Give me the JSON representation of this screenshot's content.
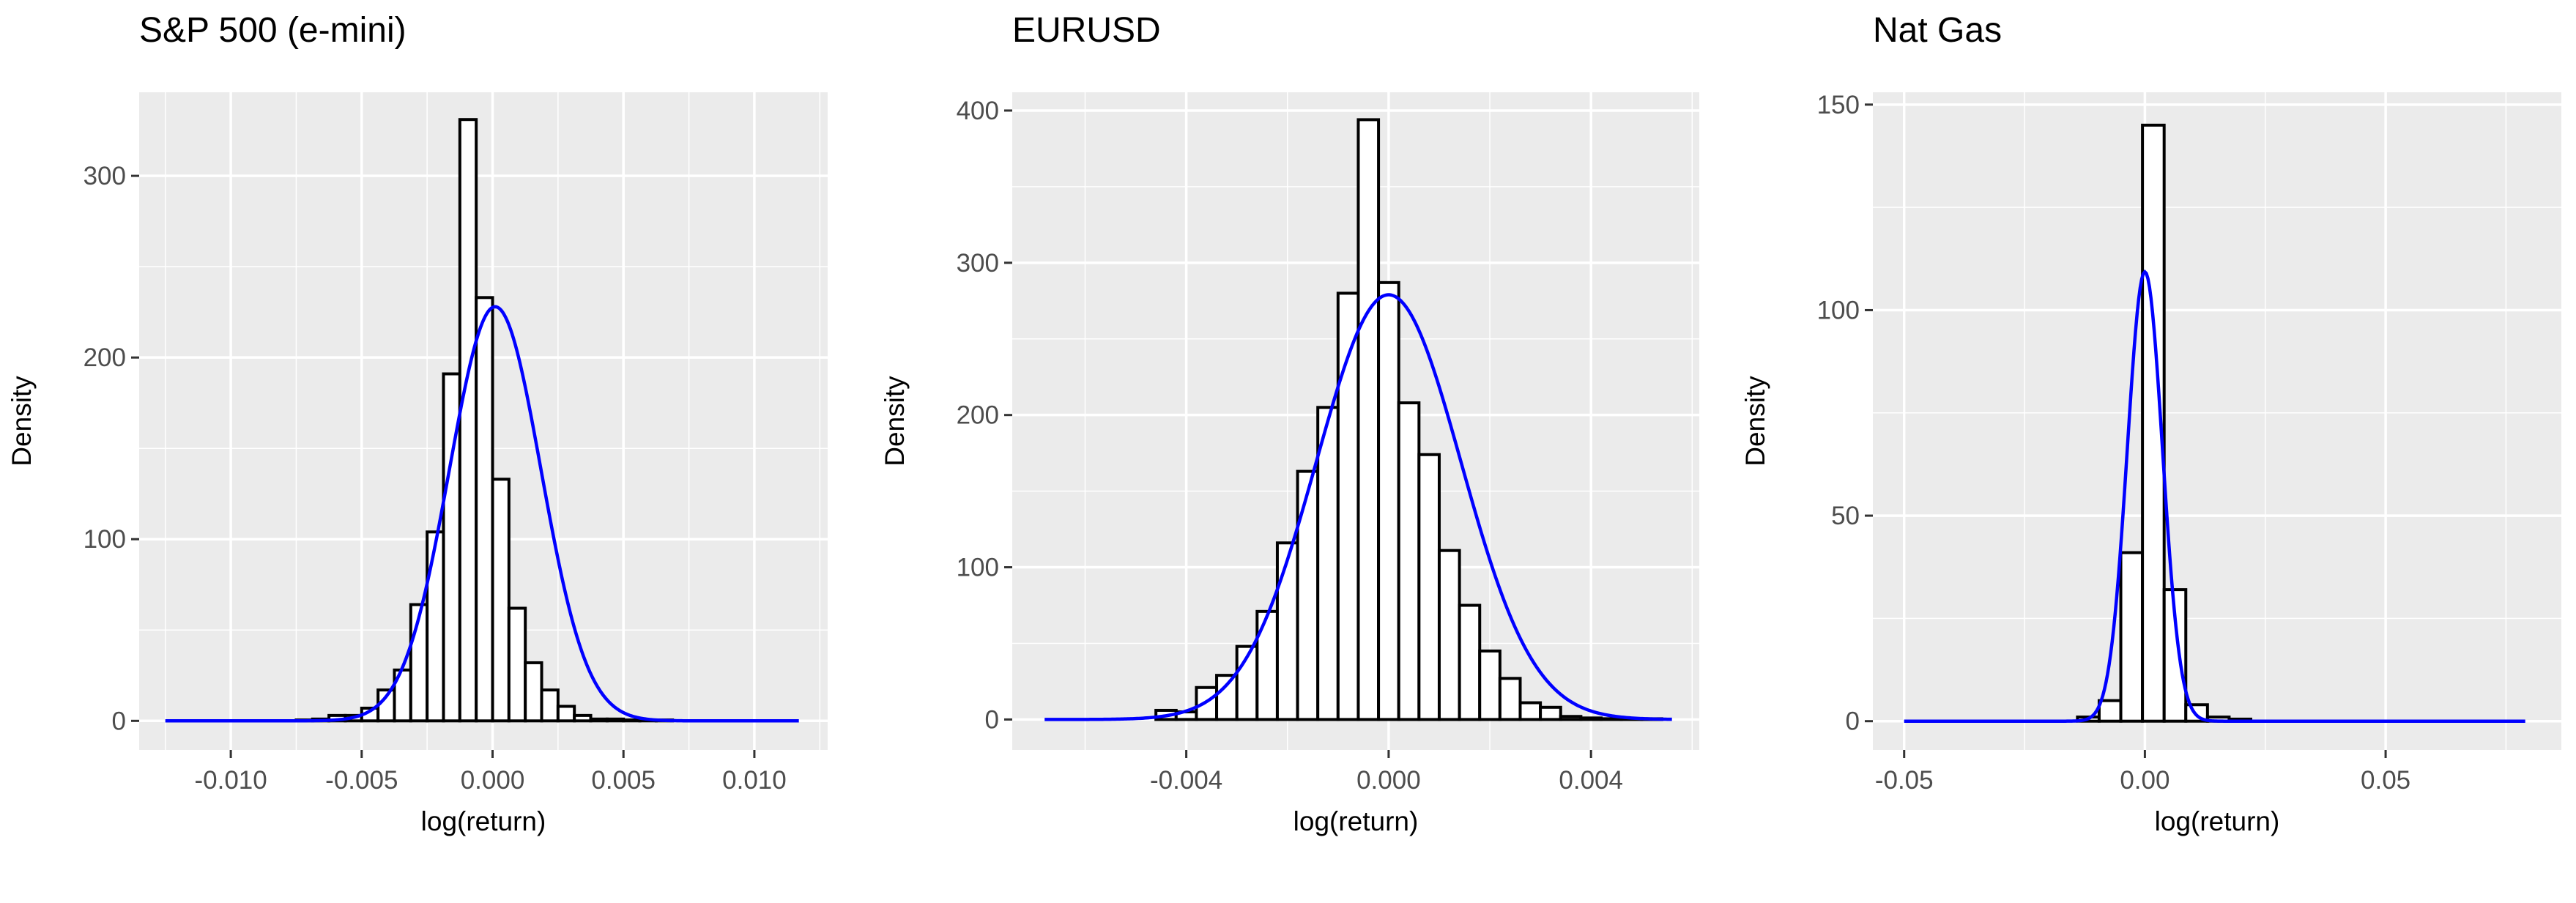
{
  "chart_data": [
    {
      "type": "histogram",
      "title": "S&P 500 (e-mini)",
      "xlabel": "log(return)",
      "ylabel": "Density",
      "xlim": [
        -0.0135,
        0.0128
      ],
      "ylim": [
        -16,
        346
      ],
      "x_ticks": [
        -0.01,
        -0.005,
        0.0,
        0.005,
        0.01
      ],
      "x_tick_labels": [
        "-0.010",
        "-0.005",
        "0.000",
        "0.005",
        "0.010"
      ],
      "y_ticks": [
        0,
        100,
        200,
        300
      ],
      "y_tick_labels": [
        "0",
        "100",
        "200",
        "300"
      ],
      "bin_width": 0.000625,
      "bins": {
        "x": [
          -0.0125,
          -0.011875,
          -0.01125,
          -0.010625,
          -0.01,
          -0.009375,
          -0.00875,
          -0.008125,
          -0.0075,
          -0.006875,
          -0.00625,
          -0.005625,
          -0.005,
          -0.004375,
          -0.00375,
          -0.003125,
          -0.0025,
          -0.001875,
          -0.00125,
          -0.000625,
          0,
          0.000625,
          0.00125,
          0.001875,
          0.0025,
          0.003125,
          0.00375,
          0.004375,
          0.005,
          0.005625,
          0.00625,
          0.006875,
          0.0075,
          0.008125,
          0.00875,
          0.009375,
          0.01,
          0.010625,
          0.01125
        ],
        "density": [
          0,
          0,
          0,
          0,
          0,
          0,
          0,
          0,
          0.5,
          1,
          3,
          3,
          7,
          17,
          28,
          64,
          104,
          191,
          331,
          233,
          133,
          62,
          32,
          17,
          8,
          3,
          1,
          1,
          0.5,
          0.5,
          0.5,
          0,
          0,
          0,
          0,
          0,
          0,
          0,
          0
        ]
      },
      "fitted_curve": {
        "name": "normal fit",
        "color": "#0000ff",
        "mean": 0.0001,
        "sd": 0.00175
      },
      "curve_range": [
        -0.0125,
        0.0117
      ]
    },
    {
      "type": "histogram",
      "title": "EURUSD",
      "xlabel": "log(return)",
      "ylabel": "Density",
      "xlim": [
        -0.00744,
        0.00614
      ],
      "ylim": [
        -20,
        412
      ],
      "x_ticks": [
        -0.004,
        0.0,
        0.004
      ],
      "x_tick_labels": [
        "-0.004",
        "0.000",
        "0.004"
      ],
      "y_ticks": [
        0,
        100,
        200,
        300,
        400
      ],
      "y_tick_labels": [
        "0",
        "100",
        "200",
        "300",
        "400"
      ],
      "bin_width": 0.0004,
      "bins": {
        "x": [
          -0.007,
          -0.0066,
          -0.0062,
          -0.0058,
          -0.0054,
          -0.005,
          -0.0046,
          -0.0042,
          -0.0038,
          -0.0034,
          -0.003,
          -0.0026,
          -0.0022,
          -0.0018,
          -0.0014,
          -0.001,
          -0.0006,
          -0.0002,
          0.0002,
          0.0006,
          0.001,
          0.0014,
          0.0018,
          0.0022,
          0.0026,
          0.003,
          0.0034,
          0.0038,
          0.0042,
          0.0046,
          0.005,
          0.0054
        ],
        "density": [
          0,
          0,
          0,
          0,
          0,
          0,
          6,
          5,
          21,
          29,
          48,
          71,
          116,
          163,
          205,
          280,
          394,
          287,
          208,
          174,
          111,
          75,
          45,
          27,
          11,
          8,
          2,
          1,
          0.5,
          0.5,
          0.5,
          0
        ]
      },
      "fitted_curve": {
        "name": "normal fit",
        "color": "#0000ff",
        "mean": 0.0,
        "sd": 0.00143
      },
      "curve_range": [
        -0.0068,
        0.0056
      ]
    },
    {
      "type": "histogram",
      "title": "Nat Gas",
      "xlabel": "log(return)",
      "ylabel": "Density",
      "xlim": [
        -0.0565,
        0.0865
      ],
      "ylim": [
        -7,
        153
      ],
      "x_ticks": [
        -0.05,
        0.0,
        0.05
      ],
      "x_tick_labels": [
        "-0.05",
        "0.00",
        "0.05"
      ],
      "y_ticks": [
        0,
        50,
        100,
        150
      ],
      "y_tick_labels": [
        "0",
        "50",
        "100",
        "150"
      ],
      "bin_width": 0.0045,
      "bins": {
        "x": [
          -0.05,
          -0.0455,
          -0.041,
          -0.0365,
          -0.032,
          -0.0275,
          -0.023,
          -0.0185,
          -0.014,
          -0.0095,
          -0.005,
          -0.0005,
          0.004,
          0.0085,
          0.013,
          0.0175,
          0.022,
          0.0265,
          0.031,
          0.0355,
          0.04,
          0.0445,
          0.049,
          0.0535,
          0.058,
          0.0625,
          0.067,
          0.0715,
          0.076
        ],
        "density": [
          0,
          0,
          0,
          0,
          0,
          0,
          0,
          0,
          1,
          5,
          41,
          145,
          32,
          4,
          1,
          0.5,
          0,
          0,
          0,
          0,
          0,
          0,
          0,
          0,
          0,
          0,
          0,
          0,
          0
        ]
      },
      "fitted_curve": {
        "name": "normal fit",
        "color": "#0000ff",
        "mean": 0.0,
        "sd": 0.00365
      },
      "curve_range": [
        -0.05,
        0.079
      ]
    }
  ]
}
